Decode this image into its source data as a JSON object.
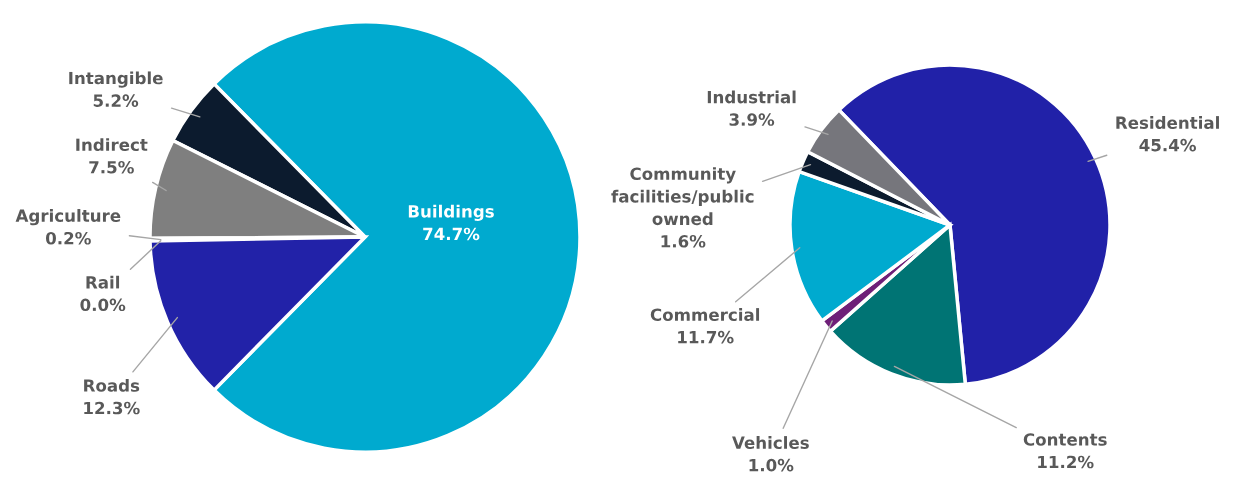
{
  "chart_data": [
    {
      "type": "pie",
      "categories": [
        "Buildings",
        "Intangible",
        "Indirect",
        "Agriculture",
        "Rail",
        "Roads"
      ],
      "values": [
        74.7,
        5.2,
        7.5,
        0.2,
        0.0,
        12.3
      ],
      "value_labels": [
        "74.7%",
        "5.2%",
        "7.5%",
        "0.2%",
        "0.0%",
        "12.3%"
      ],
      "colors": [
        "#00aacf",
        "#0c1b2e",
        "#7f7f7f",
        "#b0b0b0",
        "#3a3a8a",
        "#2222a8"
      ]
    },
    {
      "type": "pie",
      "categories": [
        "Residential",
        "Contents",
        "Vehicles",
        "Commercial",
        "Community\nfacilities/public\nowned",
        "Industrial"
      ],
      "values": [
        45.4,
        11.2,
        1.0,
        11.7,
        1.6,
        3.9
      ],
      "value_labels": [
        "45.4%",
        "11.2%",
        "1.0%",
        "11.7%",
        "1.6%",
        "3.9%"
      ],
      "colors": [
        "#2121a8",
        "#007474",
        "#6e1f78",
        "#00aacf",
        "#0c1b2e",
        "#76767c"
      ]
    }
  ]
}
